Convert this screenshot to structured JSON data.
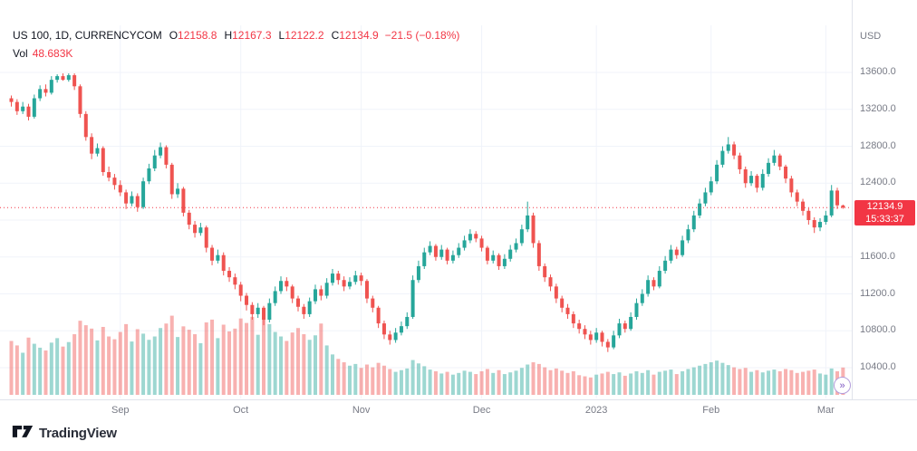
{
  "header": {
    "symbol_title": "US 100, 1D, CURRENCYCOM",
    "ohlc_fields": [
      {
        "label": "O",
        "value": "12158.8"
      },
      {
        "label": "H",
        "value": "12167.3"
      },
      {
        "label": "L",
        "value": "12122.2"
      },
      {
        "label": "C",
        "value": "12134.9"
      }
    ],
    "change_text": "−21.5 (−0.18%)",
    "volume_label": "Vol",
    "volume_value": "48.683K"
  },
  "price_axis": {
    "currency": "USD",
    "last_price": {
      "text": "12134.9",
      "countdown": "15:33:37"
    }
  },
  "footer": {
    "brand": "TradingView"
  },
  "icons": {
    "go_to_realtime": "»"
  },
  "colors": {
    "up": "#26a69a",
    "down": "#ef5350",
    "last_line": "#f23645",
    "badge_bg": "#f23645",
    "header_value_red": "#f23645",
    "grid": "#f0f3fa",
    "axis_text": "#787b86",
    "title_text": "#131722"
  },
  "chart_data": {
    "type": "candlestick",
    "title": "US 100, 1D, CURRENCYCOM",
    "interval": "1D",
    "legend": "volume pane overlaid at bottom; grid on; price axis right; last-price dotted line",
    "last": {
      "open": 12158.8,
      "high": 12167.3,
      "low": 12122.2,
      "close": 12134.9,
      "change": -21.5,
      "change_pct": -0.18,
      "volume_k": 48.683
    },
    "y_ticks": [
      {
        "label": "13600.0",
        "value": 13600
      },
      {
        "label": "13200.0",
        "value": 13200
      },
      {
        "label": "12800.0",
        "value": 12800
      },
      {
        "label": "12400.0",
        "value": 12400
      },
      {
        "label": "11600.0",
        "value": 11600
      },
      {
        "label": "11200.0",
        "value": 11200
      },
      {
        "label": "10800.0",
        "value": 10800
      },
      {
        "label": "10400.0",
        "value": 10400
      }
    ],
    "y_gridlines": [
      13600,
      13200,
      12800,
      12400,
      12000,
      11600,
      11200,
      10800,
      10400
    ],
    "y_range_visible": [
      10100,
      13750
    ],
    "x_ticks": [
      {
        "label": "Sep",
        "index": 19
      },
      {
        "label": "Oct",
        "index": 40
      },
      {
        "label": "Nov",
        "index": 61
      },
      {
        "label": "Dec",
        "index": 82
      },
      {
        "label": "2023",
        "index": 102
      },
      {
        "label": "Feb",
        "index": 122
      },
      {
        "label": "Mar",
        "index": 142
      }
    ],
    "candle_format": [
      "open",
      "high",
      "low",
      "close",
      "volume_k"
    ],
    "candles": [
      [
        13320,
        13350,
        13230,
        13280,
        96
      ],
      [
        13280,
        13310,
        13140,
        13180,
        88
      ],
      [
        13180,
        13280,
        13150,
        13230,
        75
      ],
      [
        13230,
        13260,
        13080,
        13120,
        102
      ],
      [
        13120,
        13360,
        13100,
        13320,
        91
      ],
      [
        13320,
        13460,
        13290,
        13420,
        84
      ],
      [
        13420,
        13470,
        13340,
        13380,
        79
      ],
      [
        13380,
        13560,
        13360,
        13520,
        93
      ],
      [
        13520,
        13580,
        13490,
        13560,
        101
      ],
      [
        13560,
        13590,
        13510,
        13520,
        86
      ],
      [
        13520,
        13590,
        13500,
        13570,
        94
      ],
      [
        13570,
        13590,
        13410,
        13450,
        108
      ],
      [
        13450,
        13470,
        13110,
        13150,
        132
      ],
      [
        13150,
        13180,
        12860,
        12900,
        124
      ],
      [
        12900,
        12940,
        12660,
        12720,
        118
      ],
      [
        12720,
        12830,
        12690,
        12780,
        97
      ],
      [
        12780,
        12800,
        12480,
        12520,
        121
      ],
      [
        12520,
        12580,
        12420,
        12460,
        104
      ],
      [
        12460,
        12500,
        12330,
        12380,
        99
      ],
      [
        12380,
        12430,
        12260,
        12300,
        112
      ],
      [
        12300,
        12330,
        12120,
        12180,
        126
      ],
      [
        12180,
        12310,
        12150,
        12260,
        95
      ],
      [
        12260,
        12290,
        12090,
        12140,
        117
      ],
      [
        12140,
        12460,
        12120,
        12420,
        109
      ],
      [
        12420,
        12610,
        12390,
        12560,
        98
      ],
      [
        12560,
        12760,
        12530,
        12700,
        104
      ],
      [
        12700,
        12840,
        12670,
        12790,
        119
      ],
      [
        12790,
        12810,
        12560,
        12600,
        127
      ],
      [
        12600,
        12620,
        12230,
        12280,
        141
      ],
      [
        12280,
        12400,
        12240,
        12340,
        103
      ],
      [
        12340,
        12360,
        12040,
        12080,
        122
      ],
      [
        12080,
        12110,
        11900,
        11950,
        116
      ],
      [
        11950,
        11990,
        11810,
        11860,
        108
      ],
      [
        11860,
        11970,
        11830,
        11920,
        92
      ],
      [
        11920,
        11940,
        11650,
        11700,
        129
      ],
      [
        11700,
        11730,
        11510,
        11560,
        134
      ],
      [
        11560,
        11680,
        11530,
        11620,
        101
      ],
      [
        11620,
        11650,
        11400,
        11450,
        125
      ],
      [
        11450,
        11490,
        11330,
        11380,
        113
      ],
      [
        11380,
        11420,
        11250,
        11300,
        118
      ],
      [
        11300,
        11330,
        11120,
        11180,
        136
      ],
      [
        11180,
        11210,
        11020,
        11080,
        128
      ],
      [
        11080,
        11110,
        10920,
        10980,
        139
      ],
      [
        10980,
        11100,
        10940,
        11050,
        107
      ],
      [
        11050,
        11070,
        10860,
        10920,
        145
      ],
      [
        10920,
        11150,
        10890,
        11100,
        126
      ],
      [
        11100,
        11280,
        11070,
        11230,
        112
      ],
      [
        11230,
        11390,
        11200,
        11340,
        104
      ],
      [
        11340,
        11380,
        11230,
        11280,
        96
      ],
      [
        11280,
        11300,
        11100,
        11150,
        111
      ],
      [
        11150,
        11180,
        11010,
        11060,
        119
      ],
      [
        11060,
        11090,
        10930,
        10980,
        108
      ],
      [
        10980,
        11160,
        10950,
        11120,
        98
      ],
      [
        11120,
        11300,
        11090,
        11250,
        106
      ],
      [
        11250,
        11290,
        11130,
        11180,
        127
      ],
      [
        11180,
        11370,
        11150,
        11320,
        88
      ],
      [
        11320,
        11470,
        11290,
        11420,
        72
      ],
      [
        11420,
        11450,
        11300,
        11350,
        64
      ],
      [
        11350,
        11390,
        11230,
        11280,
        58
      ],
      [
        11280,
        11380,
        11250,
        11330,
        52
      ],
      [
        11330,
        11450,
        11300,
        11400,
        55
      ],
      [
        11400,
        11430,
        11290,
        11340,
        48
      ],
      [
        11340,
        11360,
        11100,
        11150,
        54
      ],
      [
        11150,
        11180,
        11000,
        11050,
        49
      ],
      [
        11050,
        11070,
        10830,
        10880,
        57
      ],
      [
        10880,
        10910,
        10710,
        10760,
        52
      ],
      [
        10760,
        10800,
        10650,
        10700,
        46
      ],
      [
        10700,
        10830,
        10670,
        10780,
        41
      ],
      [
        10780,
        10900,
        10750,
        10850,
        44
      ],
      [
        10850,
        11000,
        10820,
        10950,
        47
      ],
      [
        10950,
        11400,
        10930,
        11350,
        62
      ],
      [
        11350,
        11560,
        11320,
        11500,
        56
      ],
      [
        11500,
        11700,
        11470,
        11650,
        51
      ],
      [
        11650,
        11770,
        11620,
        11720,
        45
      ],
      [
        11720,
        11740,
        11560,
        11600,
        42
      ],
      [
        11600,
        11730,
        11570,
        11680,
        38
      ],
      [
        11680,
        11700,
        11520,
        11560,
        41
      ],
      [
        11560,
        11670,
        11530,
        11620,
        36
      ],
      [
        11620,
        11750,
        11590,
        11700,
        39
      ],
      [
        11700,
        11830,
        11670,
        11780,
        43
      ],
      [
        11780,
        11900,
        11750,
        11850,
        41
      ],
      [
        11850,
        11880,
        11760,
        11800,
        37
      ],
      [
        11800,
        11830,
        11660,
        11700,
        42
      ],
      [
        11700,
        11720,
        11520,
        11560,
        46
      ],
      [
        11560,
        11670,
        11530,
        11620,
        39
      ],
      [
        11620,
        11640,
        11460,
        11500,
        44
      ],
      [
        11500,
        11630,
        11470,
        11580,
        37
      ],
      [
        11580,
        11730,
        11550,
        11680,
        40
      ],
      [
        11680,
        11800,
        11650,
        11750,
        43
      ],
      [
        11750,
        11950,
        11720,
        11900,
        48
      ],
      [
        11900,
        12200,
        11870,
        12050,
        54
      ],
      [
        12050,
        12080,
        11700,
        11750,
        58
      ],
      [
        11750,
        11780,
        11450,
        11500,
        55
      ],
      [
        11500,
        11530,
        11330,
        11380,
        49
      ],
      [
        11380,
        11410,
        11230,
        11280,
        44
      ],
      [
        11280,
        11310,
        11100,
        11150,
        47
      ],
      [
        11150,
        11180,
        11000,
        11050,
        43
      ],
      [
        11050,
        11090,
        10930,
        10980,
        39
      ],
      [
        10980,
        11010,
        10830,
        10880,
        42
      ],
      [
        10880,
        10920,
        10770,
        10820,
        35
      ],
      [
        10820,
        10860,
        10710,
        10760,
        33
      ],
      [
        10760,
        10800,
        10650,
        10700,
        31
      ],
      [
        10700,
        10830,
        10670,
        10780,
        36
      ],
      [
        10780,
        10800,
        10630,
        10680,
        38
      ],
      [
        10680,
        10710,
        10570,
        10620,
        41
      ],
      [
        10620,
        10800,
        10600,
        10750,
        37
      ],
      [
        10750,
        10930,
        10720,
        10880,
        40
      ],
      [
        10880,
        10910,
        10780,
        10820,
        34
      ],
      [
        10820,
        11000,
        10800,
        10950,
        38
      ],
      [
        10950,
        11150,
        10920,
        11100,
        42
      ],
      [
        11100,
        11250,
        11070,
        11200,
        39
      ],
      [
        11200,
        11400,
        11170,
        11350,
        44
      ],
      [
        11350,
        11380,
        11240,
        11280,
        36
      ],
      [
        11280,
        11500,
        11260,
        11450,
        41
      ],
      [
        11450,
        11610,
        11420,
        11560,
        43
      ],
      [
        11560,
        11730,
        11530,
        11680,
        45
      ],
      [
        11680,
        11710,
        11580,
        11620,
        37
      ],
      [
        11620,
        11830,
        11600,
        11780,
        42
      ],
      [
        11780,
        11950,
        11750,
        11900,
        46
      ],
      [
        11900,
        12100,
        11870,
        12050,
        49
      ],
      [
        12050,
        12230,
        12020,
        12180,
        52
      ],
      [
        12180,
        12350,
        12150,
        12300,
        55
      ],
      [
        12300,
        12470,
        12270,
        12420,
        58
      ],
      [
        12420,
        12650,
        12390,
        12600,
        61
      ],
      [
        12600,
        12800,
        12570,
        12750,
        57
      ],
      [
        12750,
        12900,
        12720,
        12820,
        53
      ],
      [
        12820,
        12850,
        12660,
        12700,
        49
      ],
      [
        12700,
        12730,
        12500,
        12550,
        46
      ],
      [
        12550,
        12580,
        12350,
        12400,
        48
      ],
      [
        12400,
        12530,
        12370,
        12480,
        41
      ],
      [
        12480,
        12500,
        12300,
        12350,
        44
      ],
      [
        12350,
        12550,
        12320,
        12500,
        40
      ],
      [
        12500,
        12670,
        12470,
        12620,
        43
      ],
      [
        12620,
        12760,
        12590,
        12700,
        45
      ],
      [
        12700,
        12720,
        12540,
        12580,
        42
      ],
      [
        12580,
        12600,
        12400,
        12450,
        46
      ],
      [
        12450,
        12480,
        12250,
        12300,
        44
      ],
      [
        12300,
        12330,
        12150,
        12200,
        39
      ],
      [
        12200,
        12230,
        12050,
        12100,
        41
      ],
      [
        12100,
        12130,
        11950,
        12000,
        43
      ],
      [
        12000,
        12030,
        11860,
        11920,
        45
      ],
      [
        11920,
        12020,
        11880,
        11980,
        38
      ],
      [
        11980,
        12100,
        11950,
        12050,
        36
      ],
      [
        12050,
        12380,
        12030,
        12320,
        47
      ],
      [
        12320,
        12350,
        12120,
        12160,
        42
      ],
      [
        12158.8,
        12167.3,
        12122.2,
        12134.9,
        48.683
      ]
    ]
  }
}
